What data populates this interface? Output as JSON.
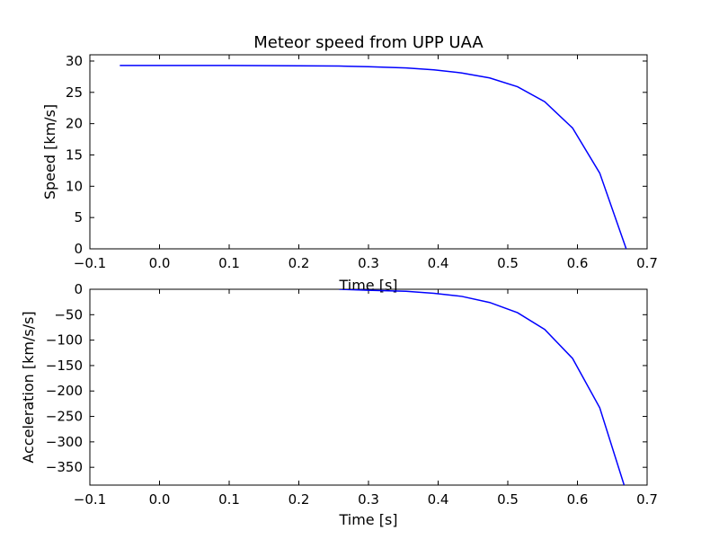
{
  "chart_data": [
    {
      "type": "line",
      "title": "Meteor speed from  UPP UAA",
      "xlabel": "Time [s]",
      "ylabel": "Speed [km/s]",
      "xlim": [
        -0.1,
        0.7
      ],
      "ylim": [
        0,
        31
      ],
      "xticks": [
        "−0.1",
        "0.0",
        "0.1",
        "0.2",
        "0.3",
        "0.4",
        "0.5",
        "0.6",
        "0.7"
      ],
      "yticks": [
        "0",
        "5",
        "10",
        "15",
        "20",
        "25",
        "30"
      ],
      "grid": false,
      "series": [
        {
          "color": "#0000ff",
          "x": [
            -0.057,
            0.0,
            0.1,
            0.2,
            0.258,
            0.3,
            0.354,
            0.394,
            0.434,
            0.474,
            0.514,
            0.553,
            0.593,
            0.632,
            0.67
          ],
          "y": [
            29.3,
            29.3,
            29.3,
            29.25,
            29.2,
            29.1,
            28.9,
            28.6,
            28.1,
            27.3,
            25.9,
            23.5,
            19.3,
            12.1,
            0
          ]
        }
      ]
    },
    {
      "type": "line",
      "title": "",
      "xlabel": "Time [s]",
      "ylabel": "Acceleration [km/s/s]",
      "xlim": [
        -0.1,
        0.7
      ],
      "ylim": [
        -385,
        0
      ],
      "xticks": [
        "−0.1",
        "0.0",
        "0.1",
        "0.2",
        "0.3",
        "0.4",
        "0.5",
        "0.6",
        "0.7"
      ],
      "yticks": [
        "0",
        "−50",
        "−100",
        "−150",
        "−200",
        "−250",
        "−300",
        "−350"
      ],
      "grid": false,
      "series": [
        {
          "color": "#0000ff",
          "x": [
            0.258,
            0.3,
            0.354,
            0.394,
            0.434,
            0.474,
            0.514,
            0.553,
            0.593,
            0.632,
            0.667
          ],
          "y": [
            0,
            -2,
            -4,
            -8,
            -14,
            -26,
            -46,
            -79,
            -136,
            -233,
            -385
          ]
        }
      ]
    }
  ]
}
